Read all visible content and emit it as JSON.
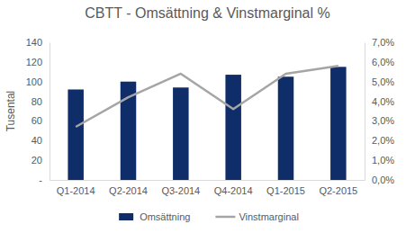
{
  "chart_data": {
    "type": "bar",
    "title": "CBTT - Omsättning & Vinstmarginal %",
    "ylabel": "Tusental",
    "categories": [
      "Q1-2014",
      "Q2-2014",
      "Q3-2014",
      "Q4-2014",
      "Q1-2015",
      "Q2-2015"
    ],
    "series": [
      {
        "name": "Omsättning",
        "type": "bar",
        "color": "#0f2d69",
        "values": [
          92,
          100,
          94,
          107,
          105,
          115
        ]
      },
      {
        "name": "Vinstmarginal",
        "type": "line",
        "color": "#a5a5a5",
        "axis": "y2",
        "values": [
          2.7,
          4.2,
          5.4,
          3.6,
          5.4,
          5.8
        ]
      }
    ],
    "ylim": [
      0,
      140
    ],
    "yticks": [
      {
        "value": 0,
        "label": "-"
      },
      20,
      40,
      60,
      80,
      100,
      120,
      140
    ],
    "y2lim": [
      0,
      7
    ],
    "y2ticks": [
      {
        "value": 0,
        "label": "0,0%"
      },
      {
        "value": 1,
        "label": "1,0%"
      },
      {
        "value": 2,
        "label": "2,0%"
      },
      {
        "value": 3,
        "label": "3,0%"
      },
      {
        "value": 4,
        "label": "4,0%"
      },
      {
        "value": 5,
        "label": "5,0%"
      },
      {
        "value": 6,
        "label": "6,0%"
      },
      {
        "value": 7,
        "label": "7,0%"
      }
    ],
    "grid": false,
    "legend": "bottom"
  }
}
